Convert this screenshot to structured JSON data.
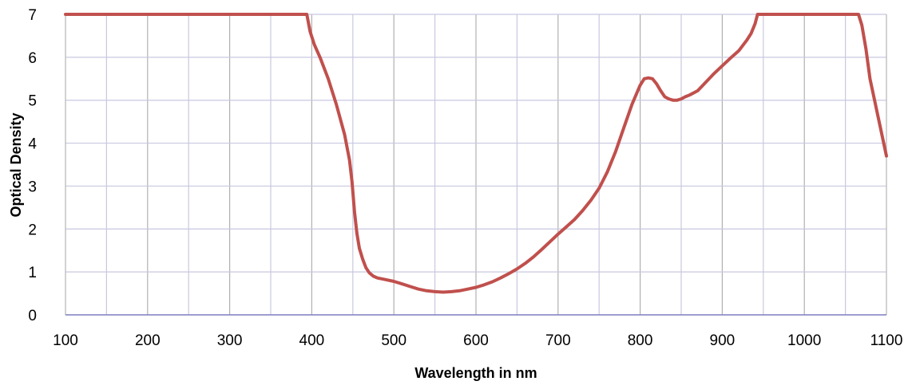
{
  "chart_data": {
    "type": "line",
    "title": "",
    "xlabel": "Wavelength in nm",
    "ylabel": "Optical Density",
    "xlim": [
      100,
      1100
    ],
    "ylim": [
      0,
      7
    ],
    "x_ticks": [
      100,
      200,
      300,
      400,
      500,
      600,
      700,
      800,
      900,
      1000,
      1100
    ],
    "y_ticks": [
      0,
      1,
      2,
      3,
      4,
      5,
      6,
      7
    ],
    "x_minor_gridlines_every": 50,
    "grid": true,
    "legend": "none",
    "series": [
      {
        "color": "#c0504d",
        "x": [
          100,
          200,
          300,
          390,
          394,
          398,
          403,
          410,
          420,
          430,
          440,
          446,
          449,
          452,
          455,
          458,
          462,
          466,
          470,
          475,
          480,
          490,
          500,
          510,
          520,
          530,
          540,
          550,
          560,
          570,
          580,
          590,
          600,
          610,
          620,
          630,
          640,
          650,
          660,
          670,
          680,
          690,
          700,
          710,
          720,
          730,
          740,
          750,
          760,
          770,
          780,
          790,
          800,
          805,
          810,
          815,
          820,
          825,
          830,
          835,
          840,
          845,
          850,
          855,
          860,
          870,
          880,
          890,
          900,
          910,
          920,
          930,
          935,
          940,
          943,
          950,
          1000,
          1060,
          1066,
          1070,
          1075,
          1080,
          1090,
          1100
        ],
        "y": [
          7.0,
          7.0,
          7.0,
          7.0,
          7.0,
          6.6,
          6.3,
          6.0,
          5.5,
          4.9,
          4.2,
          3.6,
          3.1,
          2.4,
          1.9,
          1.55,
          1.3,
          1.1,
          0.98,
          0.9,
          0.86,
          0.82,
          0.78,
          0.72,
          0.66,
          0.6,
          0.56,
          0.54,
          0.53,
          0.54,
          0.56,
          0.6,
          0.64,
          0.7,
          0.77,
          0.86,
          0.96,
          1.07,
          1.2,
          1.35,
          1.52,
          1.7,
          1.88,
          2.05,
          2.22,
          2.43,
          2.67,
          2.95,
          3.33,
          3.8,
          4.35,
          4.9,
          5.35,
          5.5,
          5.52,
          5.5,
          5.38,
          5.22,
          5.08,
          5.03,
          5.0,
          5.0,
          5.03,
          5.08,
          5.12,
          5.22,
          5.42,
          5.62,
          5.8,
          5.98,
          6.15,
          6.4,
          6.55,
          6.78,
          7.0,
          7.0,
          7.0,
          7.0,
          7.0,
          6.75,
          6.2,
          5.5,
          4.6,
          3.7
        ]
      }
    ]
  },
  "colors": {
    "line": "#c0504d",
    "grid_major": "#b0b0b0",
    "grid_minor": "#c8c8e0",
    "x_axis": "#7f7fbf",
    "plot_border": "#bfbfbf"
  }
}
